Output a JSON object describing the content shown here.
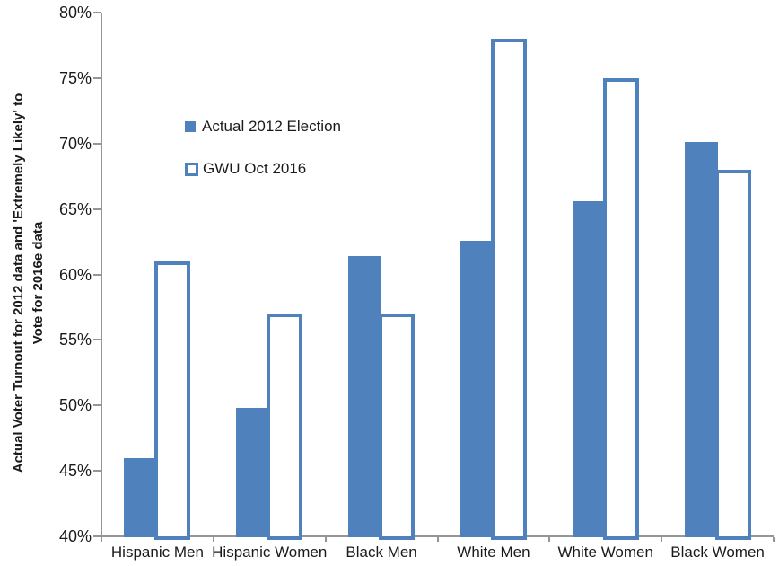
{
  "chart_data": {
    "type": "bar",
    "title": "",
    "ylabel_line1": "Actual Voter Turnout for 2012 data and 'Extremely Likely' to",
    "ylabel_line2": "Vote for 2016e data",
    "xlabel": "",
    "categories": [
      "Hispanic Men",
      "Hispanic Women",
      "Black Men",
      "White Men",
      "White Women",
      "Black Women"
    ],
    "series": [
      {
        "name": "Actual 2012 Election",
        "style": "solid",
        "color": "#4F81BD",
        "values": [
          46.0,
          49.8,
          61.4,
          62.6,
          65.6,
          70.1
        ]
      },
      {
        "name": "GWU Oct 2016",
        "style": "outline",
        "color": "#4F81BD",
        "values": [
          61,
          57,
          57,
          78,
          75,
          68
        ]
      }
    ],
    "ylim": [
      40,
      80
    ],
    "ytick_step": 5,
    "yticks": [
      {
        "value": 80,
        "label": "80%"
      },
      {
        "value": 75,
        "label": "75%"
      },
      {
        "value": 70,
        "label": "70%"
      },
      {
        "value": 65,
        "label": "65%"
      },
      {
        "value": 60,
        "label": "60%"
      },
      {
        "value": 55,
        "label": "55%"
      },
      {
        "value": 50,
        "label": "50%"
      },
      {
        "value": 45,
        "label": "45%"
      },
      {
        "value": 40,
        "label": "40%"
      }
    ],
    "grid": false,
    "legend_position": "inside-top-left"
  },
  "colors": {
    "bar_blue": "#4F81BD",
    "axis_gray": "#959595",
    "text_black": "#1a1a1a",
    "background": "#ffffff"
  }
}
